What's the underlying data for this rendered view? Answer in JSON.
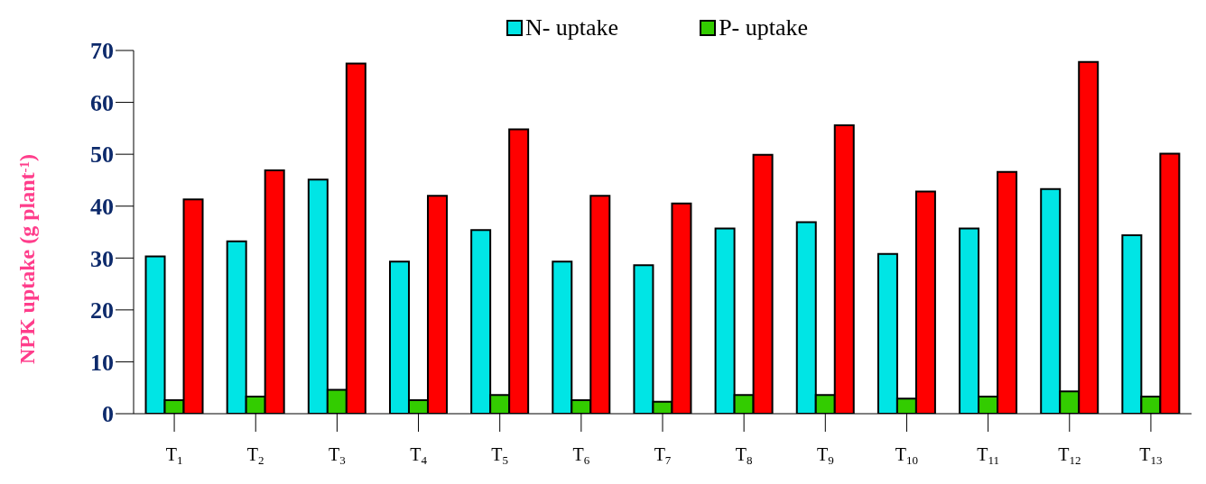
{
  "chart_data": {
    "type": "bar",
    "ylabel": "NPK uptake (g plant$^{-1}$)",
    "categories": [
      "T$_{1}$",
      "T$_{2}$",
      "T$_{3}$",
      "T$_{4}$",
      "T$_{5}$",
      "T$_{6}$",
      "T$_{7}$",
      "T$_{8}$",
      "T$_{9}$",
      "T$_{10}$",
      "T$_{11}$",
      "T$_{12}$",
      "T$_{13}$"
    ],
    "series": [
      {
        "name": "N- uptake",
        "color": "#00e5e5",
        "values": [
          30.3,
          33.2,
          45.1,
          29.3,
          35.4,
          29.3,
          28.6,
          35.7,
          36.9,
          30.8,
          35.7,
          43.3,
          34.4
        ]
      },
      {
        "name": "P- uptake",
        "color": "#33cc00",
        "values": [
          2.6,
          3.3,
          4.6,
          2.6,
          3.6,
          2.6,
          2.3,
          3.6,
          3.6,
          2.9,
          3.3,
          4.3,
          3.3
        ]
      },
      {
        "color": "#ff0000",
        "values": [
          41.3,
          46.9,
          67.5,
          42.0,
          54.8,
          42.0,
          40.5,
          49.9,
          55.6,
          42.8,
          46.6,
          67.8,
          50.1
        ]
      }
    ],
    "ylim": [
      0,
      70
    ],
    "yticks": [
      0,
      10,
      20,
      30,
      40,
      50,
      60,
      70
    ],
    "grid": false,
    "legend": "top"
  }
}
